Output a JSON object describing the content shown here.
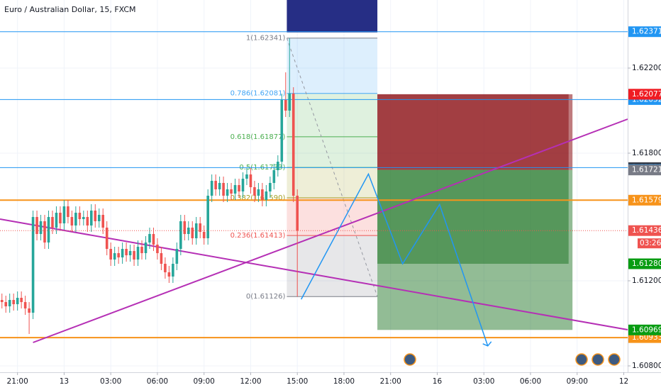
{
  "chart_data": {
    "type": "candlestick",
    "title": "Euro / Australian Dollar, 15, FXCM",
    "xlim": [
      -4.5,
      157
    ],
    "ylim": [
      1.6077,
      1.6252
    ],
    "grid": true,
    "up_color": "#26a69a",
    "down_color": "#ef5350",
    "xticks": [
      {
        "value": 0,
        "label": "21:00"
      },
      {
        "value": 12,
        "label": "13"
      },
      {
        "value": 24,
        "label": "03:00"
      },
      {
        "value": 36,
        "label": "06:00"
      },
      {
        "value": 48,
        "label": "09:00"
      },
      {
        "value": 60,
        "label": "12:00"
      },
      {
        "value": 72,
        "label": "15:00"
      },
      {
        "value": 84,
        "label": "18:00"
      },
      {
        "value": 96,
        "label": "21:00"
      },
      {
        "value": 108,
        "label": "16"
      },
      {
        "value": 120,
        "label": "03:00"
      },
      {
        "value": 132,
        "label": "06:00"
      },
      {
        "value": 144,
        "label": "09:00"
      },
      {
        "value": 156,
        "label": "12"
      }
    ],
    "yticks": [
      {
        "value": 1.622,
        "label": "1.62200"
      },
      {
        "value": 1.618,
        "label": "1.61800"
      },
      {
        "value": 1.612,
        "label": "1.61200"
      },
      {
        "value": 1.608,
        "label": "1.60800"
      }
    ],
    "x": [
      -4,
      -3,
      -2,
      -1,
      0,
      1,
      2,
      3,
      4,
      5,
      6,
      7,
      8,
      9,
      10,
      11,
      12,
      13,
      14,
      15,
      16,
      17,
      18,
      19,
      20,
      21,
      22,
      23,
      24,
      25,
      26,
      27,
      28,
      29,
      30,
      31,
      32,
      33,
      34,
      35,
      36,
      37,
      38,
      39,
      40,
      41,
      42,
      43,
      44,
      45,
      46,
      47,
      48,
      49,
      50,
      51,
      52,
      53,
      54,
      55,
      56,
      57,
      58,
      59,
      60,
      61,
      62,
      63,
      64,
      65,
      66,
      67,
      68,
      69,
      70,
      71,
      72
    ],
    "open": [
      1.6111,
      1.611,
      1.6108,
      1.6111,
      1.6109,
      1.6112,
      1.611,
      1.6107,
      1.6105,
      1.615,
      1.6142,
      1.6148,
      1.6138,
      1.615,
      1.6145,
      1.6152,
      1.6147,
      1.6155,
      1.615,
      1.6146,
      1.6152,
      1.6149,
      1.615,
      1.6146,
      1.6153,
      1.6148,
      1.6151,
      1.6145,
      1.6135,
      1.613,
      1.6133,
      1.6131,
      1.6135,
      1.6132,
      1.6134,
      1.613,
      1.6136,
      1.6133,
      1.6138,
      1.6142,
      1.6137,
      1.6133,
      1.6128,
      1.6124,
      1.6122,
      1.6128,
      1.6135,
      1.6148,
      1.6142,
      1.6145,
      1.614,
      1.6147,
      1.6143,
      1.614,
      1.616,
      1.6167,
      1.6163,
      1.6166,
      1.616,
      1.6163,
      1.6161,
      1.6165,
      1.6162,
      1.6168,
      1.617,
      1.6164,
      1.616,
      1.6163,
      1.6158,
      1.6162,
      1.6166,
      1.6172,
      1.6176,
      1.6205,
      1.62,
      1.6208,
      1.616
    ],
    "high": [
      1.6114,
      1.6113,
      1.6114,
      1.6114,
      1.6115,
      1.6115,
      1.6113,
      1.611,
      1.6153,
      1.6153,
      1.6151,
      1.6151,
      1.6153,
      1.6153,
      1.6155,
      1.6155,
      1.6158,
      1.6158,
      1.6153,
      1.6155,
      1.6155,
      1.6153,
      1.6153,
      1.6156,
      1.6156,
      1.6154,
      1.6154,
      1.6148,
      1.6138,
      1.6136,
      1.6136,
      1.6138,
      1.6138,
      1.6137,
      1.6137,
      1.6139,
      1.6139,
      1.6141,
      1.6145,
      1.6145,
      1.614,
      1.6136,
      1.6131,
      1.6127,
      1.6131,
      1.6138,
      1.6151,
      1.6151,
      1.6148,
      1.6148,
      1.615,
      1.615,
      1.6146,
      1.6163,
      1.617,
      1.617,
      1.6169,
      1.6169,
      1.6166,
      1.6166,
      1.6168,
      1.6168,
      1.6171,
      1.6173,
      1.6173,
      1.6167,
      1.6166,
      1.6166,
      1.6165,
      1.6169,
      1.6175,
      1.6179,
      1.6208,
      1.6218,
      1.62341,
      1.6211,
      1.6163
    ],
    "low": [
      1.6107,
      1.6105,
      1.6105,
      1.6106,
      1.6106,
      1.6107,
      1.6104,
      1.6095,
      1.6102,
      1.6139,
      1.6139,
      1.6135,
      1.6135,
      1.6142,
      1.6142,
      1.6144,
      1.6144,
      1.6147,
      1.6143,
      1.6143,
      1.6146,
      1.6146,
      1.6143,
      1.6143,
      1.6145,
      1.6145,
      1.6142,
      1.6132,
      1.6127,
      1.6127,
      1.6128,
      1.6128,
      1.6129,
      1.6129,
      1.6127,
      1.6127,
      1.613,
      1.613,
      1.6135,
      1.6134,
      1.613,
      1.6125,
      1.6121,
      1.6119,
      1.6119,
      1.6125,
      1.6132,
      1.6139,
      1.6139,
      1.6137,
      1.6137,
      1.614,
      1.6137,
      1.6137,
      1.6157,
      1.616,
      1.616,
      1.6157,
      1.6157,
      1.6158,
      1.6158,
      1.6159,
      1.6159,
      1.6165,
      1.6161,
      1.6157,
      1.6157,
      1.6155,
      1.6155,
      1.6159,
      1.6163,
      1.6169,
      1.6173,
      1.6197,
      1.6197,
      1.6157,
      1.61126
    ],
    "close": [
      1.611,
      1.6108,
      1.6111,
      1.6109,
      1.6112,
      1.611,
      1.6107,
      1.6105,
      1.615,
      1.6142,
      1.6148,
      1.6138,
      1.615,
      1.6145,
      1.6152,
      1.6147,
      1.6155,
      1.615,
      1.6146,
      1.6152,
      1.6149,
      1.615,
      1.6146,
      1.6153,
      1.6148,
      1.6151,
      1.6145,
      1.6135,
      1.613,
      1.6133,
      1.6131,
      1.6135,
      1.6132,
      1.6134,
      1.613,
      1.6136,
      1.6133,
      1.6138,
      1.6142,
      1.6137,
      1.6133,
      1.6128,
      1.6124,
      1.6122,
      1.6128,
      1.6135,
      1.6148,
      1.6142,
      1.6145,
      1.614,
      1.6147,
      1.6143,
      1.614,
      1.616,
      1.6167,
      1.6163,
      1.6166,
      1.616,
      1.6163,
      1.6161,
      1.6165,
      1.6162,
      1.6168,
      1.617,
      1.6164,
      1.616,
      1.6163,
      1.6158,
      1.6162,
      1.6166,
      1.6172,
      1.6176,
      1.6205,
      1.62,
      1.6208,
      1.616,
      1.61436
    ],
    "current_price": 1.61436,
    "countdown": "03:26",
    "price_lines": [
      {
        "value": 1.62371,
        "color": "#2196f3",
        "badge": "#2196f3"
      },
      {
        "value": 1.62052,
        "color": "#2196f3",
        "badge": "#2196f3"
      },
      {
        "value": 1.61732,
        "color": "#2196f3",
        "badge": "#363a45"
      },
      {
        "value": 1.61579,
        "color": "#f7931a",
        "badge": "#f7931a"
      },
      {
        "value": 1.60933,
        "color": "#f7931a",
        "badge": "#f7931a"
      }
    ],
    "trendlines": [
      {
        "x": [
          -4.5,
          157
        ],
        "y": [
          1.6149,
          1.6097
        ],
        "color": "#b52fb5"
      },
      {
        "x": [
          4,
          157
        ],
        "y": [
          1.6091,
          1.6196
        ],
        "color": "#b52fb5"
      }
    ],
    "fib": {
      "x": [
        69.3,
        92.6
      ],
      "levels": [
        {
          "value": 1.62341,
          "label": "1(1.62341)",
          "color": "#787b86"
        },
        {
          "value": 1.62081,
          "label": "0.786(1.62081)",
          "color": "#42a5f5"
        },
        {
          "value": 1.61877,
          "label": "0.618(1.61877)",
          "color": "#4caf50"
        },
        {
          "value": 1.61733,
          "label": "0.5(1.61733)",
          "color": "#4caf50"
        },
        {
          "value": 1.6159,
          "label": "0.382(1.61590)",
          "color": "#a1a020"
        },
        {
          "value": 1.61413,
          "label": "0.236(1.61413)",
          "color": "#ef5350"
        },
        {
          "value": 1.61126,
          "label": "0(1.61126)",
          "color": "#787b86"
        }
      ]
    },
    "positions": [
      {
        "x": [
          92.6,
          141.8
        ],
        "entry": 1.61723,
        "stop": 1.62077,
        "target": {
          "value": 1.6128,
          "label": "1.61280"
        },
        "stop_color": "#8b0d12",
        "target_color": "#0d6b14"
      },
      {
        "x": [
          92.6,
          142.8
        ],
        "entry": 1.61721,
        "stop": 1.62077,
        "target": 1.60969,
        "stop_color": "#8b0d12",
        "target_color": "#0d6b14"
      }
    ],
    "projection": {
      "x": [
        73,
        90.3,
        99.1,
        108.6,
        121
      ],
      "y": [
        1.61113,
        1.61702,
        1.6128,
        1.61559,
        1.60894
      ],
      "color": "#2196f3"
    }
  }
}
